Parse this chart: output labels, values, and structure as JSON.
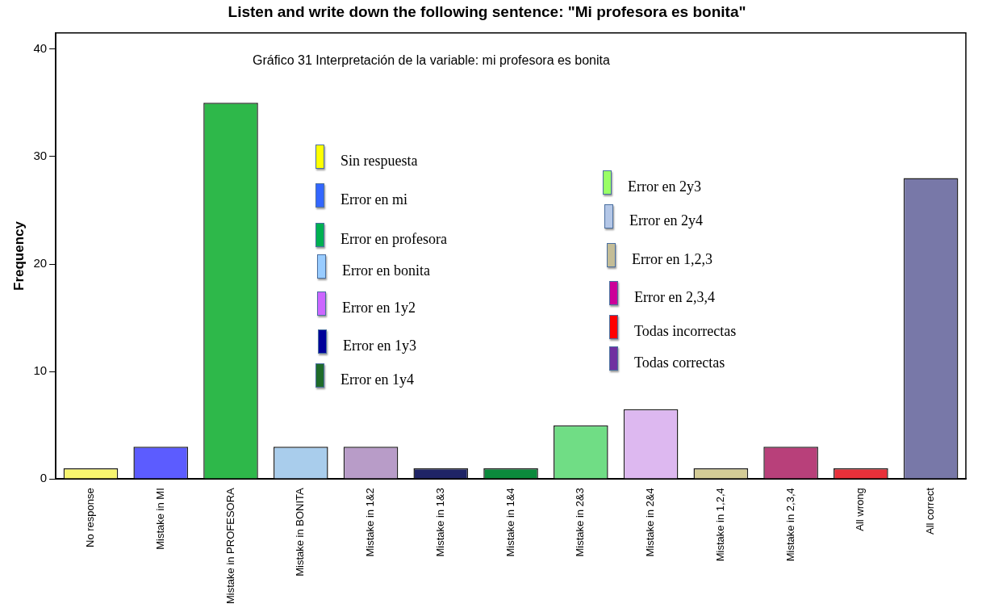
{
  "chart_data": {
    "type": "bar",
    "title": "Listen and write down the following sentence: \"Mi profesora es bonita\"",
    "ylabel": "Frequency",
    "categories": [
      "No response",
      "Mistake in MI",
      "Mistake in PROFESORA",
      "Mistake in BONITA",
      "Mistake in 1&2",
      "Mistake in 1&3",
      "Mistake in 1&4",
      "Mistake in 2&3",
      "Mistake in 2&4",
      "Mistake in 1,2,4",
      "Mistake in 2,3,4",
      "All wrong",
      "All correct"
    ],
    "values": [
      1,
      3,
      35,
      3,
      3,
      1,
      1,
      5,
      6.5,
      1,
      3,
      1,
      28
    ],
    "colors": [
      "#f7f56e",
      "#5c5cff",
      "#2eb84a",
      "#a9cdec",
      "#b89cc8",
      "#1f2466",
      "#0b8a3c",
      "#70dd85",
      "#ddb8f0",
      "#d4cc96",
      "#b8407a",
      "#e8303a",
      "#7878a8"
    ],
    "ylim": [
      0,
      41.5
    ],
    "yticks": [
      0,
      10,
      20,
      30,
      40
    ],
    "grid": false,
    "annotations": [
      "Gráfico 31 Interpretación de la variable: mi profesora es bonita",
      "Sin respuesta",
      "Error en mi",
      "Error en profesora",
      "Error en bonita",
      "Error en 1y2",
      "Error en 1y3",
      "Error en 1y4",
      "Error en 2y3",
      "Error en 2y4",
      "Error en 1,2,3",
      "Error en 2,3,4",
      "Todas incorrectas",
      "Todas correctas"
    ]
  }
}
